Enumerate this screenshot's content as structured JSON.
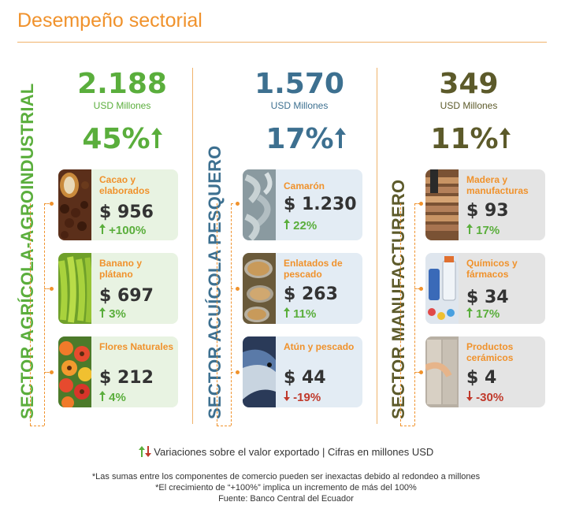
{
  "title": "Desempeño sectorial",
  "sectors": [
    {
      "label": "SECTOR AGRÍCOLA-AGROINDUSTRIAL",
      "color": "#5aae3c",
      "value": "2.188",
      "unit": "USD Millones",
      "pct": "45%",
      "items": [
        {
          "name": "Cacao y elaborados",
          "value": "$ 956",
          "variation": "+100%",
          "direction": "up",
          "photo": "cacao-photo"
        },
        {
          "name": "Banano y plátano",
          "value": "$ 697",
          "variation": "3%",
          "direction": "up",
          "photo": "banana-photo"
        },
        {
          "name": "Flores Naturales",
          "value": "$ 212",
          "variation": "4%",
          "direction": "up",
          "photo": "flowers-photo"
        }
      ]
    },
    {
      "label": "SECTOR ACUÍCOLA PESQUERO",
      "color": "#3d7090",
      "value": "1.570",
      "unit": "USD Millones",
      "pct": "17%",
      "items": [
        {
          "name": "Camarón",
          "value": "$ 1.230",
          "variation": "22%",
          "direction": "up",
          "photo": "shrimp-photo"
        },
        {
          "name": "Enlatados de pescado",
          "value": "$ 263",
          "variation": "11%",
          "direction": "up",
          "photo": "cans-photo"
        },
        {
          "name": "Atún y pescado",
          "value": "$ 44",
          "variation": "-19%",
          "direction": "down",
          "photo": "tuna-photo"
        }
      ]
    },
    {
      "label": "SECTOR MANUFACTURERO",
      "color": "#5c5a2a",
      "value": "349",
      "unit": "USD Millones",
      "pct": "11%",
      "items": [
        {
          "name": "Madera y manufacturas",
          "value": "$ 93",
          "variation": "17%",
          "direction": "up",
          "photo": "wood-photo"
        },
        {
          "name": "Químicos y fármacos",
          "value": "$ 34",
          "variation": "17%",
          "direction": "up",
          "photo": "pharma-photo"
        },
        {
          "name": "Productos cerámicos",
          "value": "$ 4",
          "variation": "-30%",
          "direction": "down",
          "photo": "ceramics-photo"
        }
      ]
    }
  ],
  "legend": "Variaciones sobre el valor exportado | Cifras en millones USD",
  "footnotes": [
    "*Las sumas entre los componentes de comercio pueden ser inexactas debido al redondeo a millones",
    "*El crecimiento de “+100%” implica un incremento de más del 100%",
    "Fuente: Banco Central del Ecuador"
  ],
  "colors": {
    "accent": "#f0922c",
    "up": "#5aae3c",
    "down": "#c0392b",
    "card_green": "#e8f3e2",
    "card_blue": "#e3ecf4",
    "card_gray": "#e4e4e4"
  }
}
